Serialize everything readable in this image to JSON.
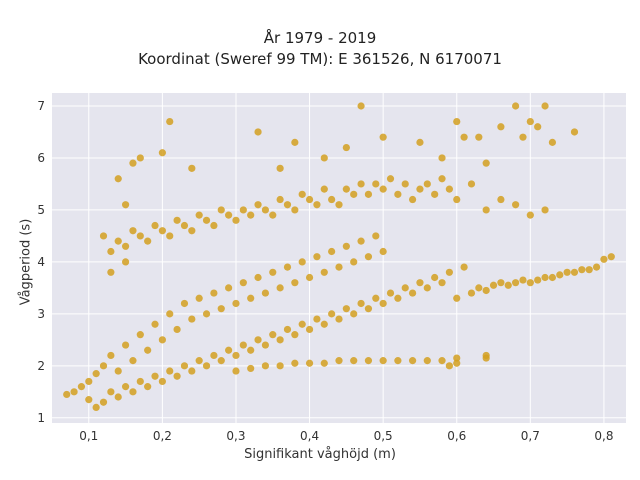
{
  "chart_data": {
    "type": "scatter",
    "title": "År 1979 - 2019",
    "subtitle": "Koordinat (Sweref 99 TM): E 361526, N 6170071",
    "xlabel": "Signifikant våghöjd (m)",
    "ylabel": "Vågperiod (s)",
    "xlim": [
      0.05,
      0.83
    ],
    "ylim": [
      0.9,
      7.25
    ],
    "xticks": [
      0.1,
      0.2,
      0.3,
      0.4,
      0.5,
      0.6,
      0.7,
      0.8
    ],
    "xtick_labels": [
      "0,1",
      "0,2",
      "0,3",
      "0,4",
      "0,5",
      "0,6",
      "0,7",
      "0,8"
    ],
    "yticks": [
      1,
      2,
      3,
      4,
      5,
      6,
      7
    ],
    "ytick_labels": [
      "1",
      "2",
      "3",
      "4",
      "5",
      "6",
      "7"
    ],
    "grid": true,
    "legend": "none",
    "marker_color": "#D4A020",
    "background_color": "#E5E5EE",
    "series": [
      {
        "points": [
          [
            0.07,
            1.45
          ],
          [
            0.08,
            1.5
          ],
          [
            0.09,
            1.6
          ],
          [
            0.1,
            1.35
          ],
          [
            0.1,
            1.7
          ],
          [
            0.11,
            1.2
          ],
          [
            0.11,
            1.85
          ],
          [
            0.12,
            1.3
          ],
          [
            0.12,
            2.0
          ],
          [
            0.13,
            1.5
          ],
          [
            0.13,
            2.2
          ],
          [
            0.14,
            1.4
          ],
          [
            0.14,
            1.9
          ],
          [
            0.15,
            1.6
          ],
          [
            0.15,
            2.4
          ],
          [
            0.16,
            1.5
          ],
          [
            0.16,
            2.1
          ],
          [
            0.17,
            1.7
          ],
          [
            0.17,
            2.6
          ],
          [
            0.18,
            1.6
          ],
          [
            0.18,
            2.3
          ],
          [
            0.19,
            1.8
          ],
          [
            0.19,
            2.8
          ],
          [
            0.2,
            1.7
          ],
          [
            0.2,
            2.5
          ],
          [
            0.21,
            1.9
          ],
          [
            0.21,
            3.0
          ],
          [
            0.22,
            1.8
          ],
          [
            0.22,
            2.7
          ],
          [
            0.23,
            2.0
          ],
          [
            0.23,
            3.2
          ],
          [
            0.24,
            1.9
          ],
          [
            0.24,
            2.9
          ],
          [
            0.25,
            2.1
          ],
          [
            0.25,
            3.3
          ],
          [
            0.26,
            2.0
          ],
          [
            0.26,
            3.0
          ],
          [
            0.27,
            2.2
          ],
          [
            0.27,
            3.4
          ],
          [
            0.28,
            2.1
          ],
          [
            0.28,
            3.1
          ],
          [
            0.29,
            2.3
          ],
          [
            0.29,
            3.5
          ],
          [
            0.3,
            2.2
          ],
          [
            0.3,
            3.2
          ],
          [
            0.31,
            2.4
          ],
          [
            0.31,
            3.6
          ],
          [
            0.32,
            2.3
          ],
          [
            0.32,
            3.3
          ],
          [
            0.33,
            2.5
          ],
          [
            0.33,
            3.7
          ],
          [
            0.34,
            2.4
          ],
          [
            0.34,
            3.4
          ],
          [
            0.35,
            2.6
          ],
          [
            0.35,
            3.8
          ],
          [
            0.36,
            2.5
          ],
          [
            0.36,
            3.5
          ],
          [
            0.37,
            2.7
          ],
          [
            0.37,
            3.9
          ],
          [
            0.38,
            2.6
          ],
          [
            0.38,
            3.6
          ],
          [
            0.39,
            2.8
          ],
          [
            0.39,
            4.0
          ],
          [
            0.4,
            2.7
          ],
          [
            0.4,
            3.7
          ],
          [
            0.41,
            2.9
          ],
          [
            0.41,
            4.1
          ],
          [
            0.42,
            2.8
          ],
          [
            0.42,
            3.8
          ],
          [
            0.43,
            3.0
          ],
          [
            0.43,
            4.2
          ],
          [
            0.44,
            2.9
          ],
          [
            0.44,
            3.9
          ],
          [
            0.45,
            3.1
          ],
          [
            0.45,
            4.3
          ],
          [
            0.46,
            3.0
          ],
          [
            0.46,
            4.0
          ],
          [
            0.47,
            3.2
          ],
          [
            0.47,
            4.4
          ],
          [
            0.48,
            3.1
          ],
          [
            0.48,
            4.1
          ],
          [
            0.49,
            3.3
          ],
          [
            0.49,
            4.5
          ],
          [
            0.5,
            3.2
          ],
          [
            0.5,
            4.2
          ],
          [
            0.51,
            3.4
          ],
          [
            0.52,
            3.3
          ],
          [
            0.53,
            3.5
          ],
          [
            0.54,
            3.4
          ],
          [
            0.55,
            3.6
          ],
          [
            0.56,
            3.5
          ],
          [
            0.57,
            3.7
          ],
          [
            0.58,
            3.6
          ],
          [
            0.59,
            3.8
          ],
          [
            0.6,
            3.3
          ],
          [
            0.61,
            3.9
          ],
          [
            0.62,
            3.4
          ],
          [
            0.63,
            3.5
          ],
          [
            0.64,
            3.45
          ],
          [
            0.65,
            3.55
          ],
          [
            0.66,
            3.6
          ],
          [
            0.67,
            3.55
          ],
          [
            0.68,
            3.6
          ],
          [
            0.69,
            3.65
          ],
          [
            0.7,
            3.6
          ],
          [
            0.71,
            3.65
          ],
          [
            0.72,
            3.7
          ],
          [
            0.73,
            3.7
          ],
          [
            0.74,
            3.75
          ],
          [
            0.75,
            3.8
          ],
          [
            0.76,
            3.8
          ],
          [
            0.77,
            3.85
          ],
          [
            0.78,
            3.85
          ],
          [
            0.79,
            3.9
          ],
          [
            0.8,
            4.05
          ],
          [
            0.81,
            4.1
          ],
          [
            0.3,
            1.9
          ],
          [
            0.32,
            1.95
          ],
          [
            0.34,
            2.0
          ],
          [
            0.36,
            2.0
          ],
          [
            0.38,
            2.05
          ],
          [
            0.4,
            2.05
          ],
          [
            0.42,
            2.05
          ],
          [
            0.44,
            2.1
          ],
          [
            0.46,
            2.1
          ],
          [
            0.48,
            2.1
          ],
          [
            0.5,
            2.1
          ],
          [
            0.52,
            2.1
          ],
          [
            0.54,
            2.1
          ],
          [
            0.56,
            2.1
          ],
          [
            0.58,
            2.1
          ],
          [
            0.6,
            2.15
          ],
          [
            0.64,
            2.15
          ],
          [
            0.12,
            4.5
          ],
          [
            0.13,
            4.2
          ],
          [
            0.14,
            4.4
          ],
          [
            0.15,
            4.3
          ],
          [
            0.16,
            4.6
          ],
          [
            0.17,
            4.5
          ],
          [
            0.18,
            4.4
          ],
          [
            0.19,
            4.7
          ],
          [
            0.2,
            4.6
          ],
          [
            0.21,
            4.5
          ],
          [
            0.22,
            4.8
          ],
          [
            0.23,
            4.7
          ],
          [
            0.24,
            4.6
          ],
          [
            0.25,
            4.9
          ],
          [
            0.26,
            4.8
          ],
          [
            0.27,
            4.7
          ],
          [
            0.28,
            5.0
          ],
          [
            0.29,
            4.9
          ],
          [
            0.3,
            4.8
          ],
          [
            0.31,
            5.0
          ],
          [
            0.32,
            4.9
          ],
          [
            0.33,
            5.1
          ],
          [
            0.34,
            5.0
          ],
          [
            0.35,
            4.9
          ],
          [
            0.36,
            5.2
          ],
          [
            0.37,
            5.1
          ],
          [
            0.38,
            5.0
          ],
          [
            0.39,
            5.3
          ],
          [
            0.4,
            5.2
          ],
          [
            0.41,
            5.1
          ],
          [
            0.42,
            5.4
          ],
          [
            0.43,
            5.2
          ],
          [
            0.44,
            5.1
          ],
          [
            0.45,
            5.4
          ],
          [
            0.46,
            5.3
          ],
          [
            0.47,
            5.5
          ],
          [
            0.48,
            5.3
          ],
          [
            0.49,
            5.5
          ],
          [
            0.5,
            5.4
          ],
          [
            0.51,
            5.6
          ],
          [
            0.52,
            5.3
          ],
          [
            0.53,
            5.5
          ],
          [
            0.54,
            5.2
          ],
          [
            0.55,
            5.4
          ],
          [
            0.56,
            5.5
          ],
          [
            0.57,
            5.3
          ],
          [
            0.58,
            5.6
          ],
          [
            0.59,
            5.4
          ],
          [
            0.6,
            5.2
          ],
          [
            0.62,
            5.5
          ],
          [
            0.64,
            5.0
          ],
          [
            0.66,
            5.2
          ],
          [
            0.68,
            5.1
          ],
          [
            0.7,
            4.9
          ],
          [
            0.72,
            5.0
          ],
          [
            0.14,
            5.6
          ],
          [
            0.15,
            5.1
          ],
          [
            0.16,
            5.9
          ],
          [
            0.17,
            6.0
          ],
          [
            0.2,
            6.1
          ],
          [
            0.21,
            6.7
          ],
          [
            0.24,
            5.8
          ],
          [
            0.33,
            6.5
          ],
          [
            0.36,
            5.8
          ],
          [
            0.38,
            6.3
          ],
          [
            0.42,
            6.0
          ],
          [
            0.45,
            6.2
          ],
          [
            0.47,
            7.0
          ],
          [
            0.5,
            6.4
          ],
          [
            0.55,
            6.3
          ],
          [
            0.58,
            6.0
          ],
          [
            0.61,
            6.4
          ],
          [
            0.64,
            5.9
          ],
          [
            0.66,
            6.6
          ],
          [
            0.68,
            7.0
          ],
          [
            0.7,
            6.7
          ],
          [
            0.71,
            6.6
          ],
          [
            0.72,
            7.0
          ],
          [
            0.73,
            6.3
          ],
          [
            0.76,
            6.5
          ],
          [
            0.13,
            3.8
          ],
          [
            0.15,
            4.0
          ],
          [
            0.59,
            2.0
          ],
          [
            0.6,
            2.05
          ],
          [
            0.64,
            2.2
          ],
          [
            0.6,
            6.7
          ],
          [
            0.63,
            6.4
          ],
          [
            0.69,
            6.4
          ]
        ]
      }
    ]
  }
}
